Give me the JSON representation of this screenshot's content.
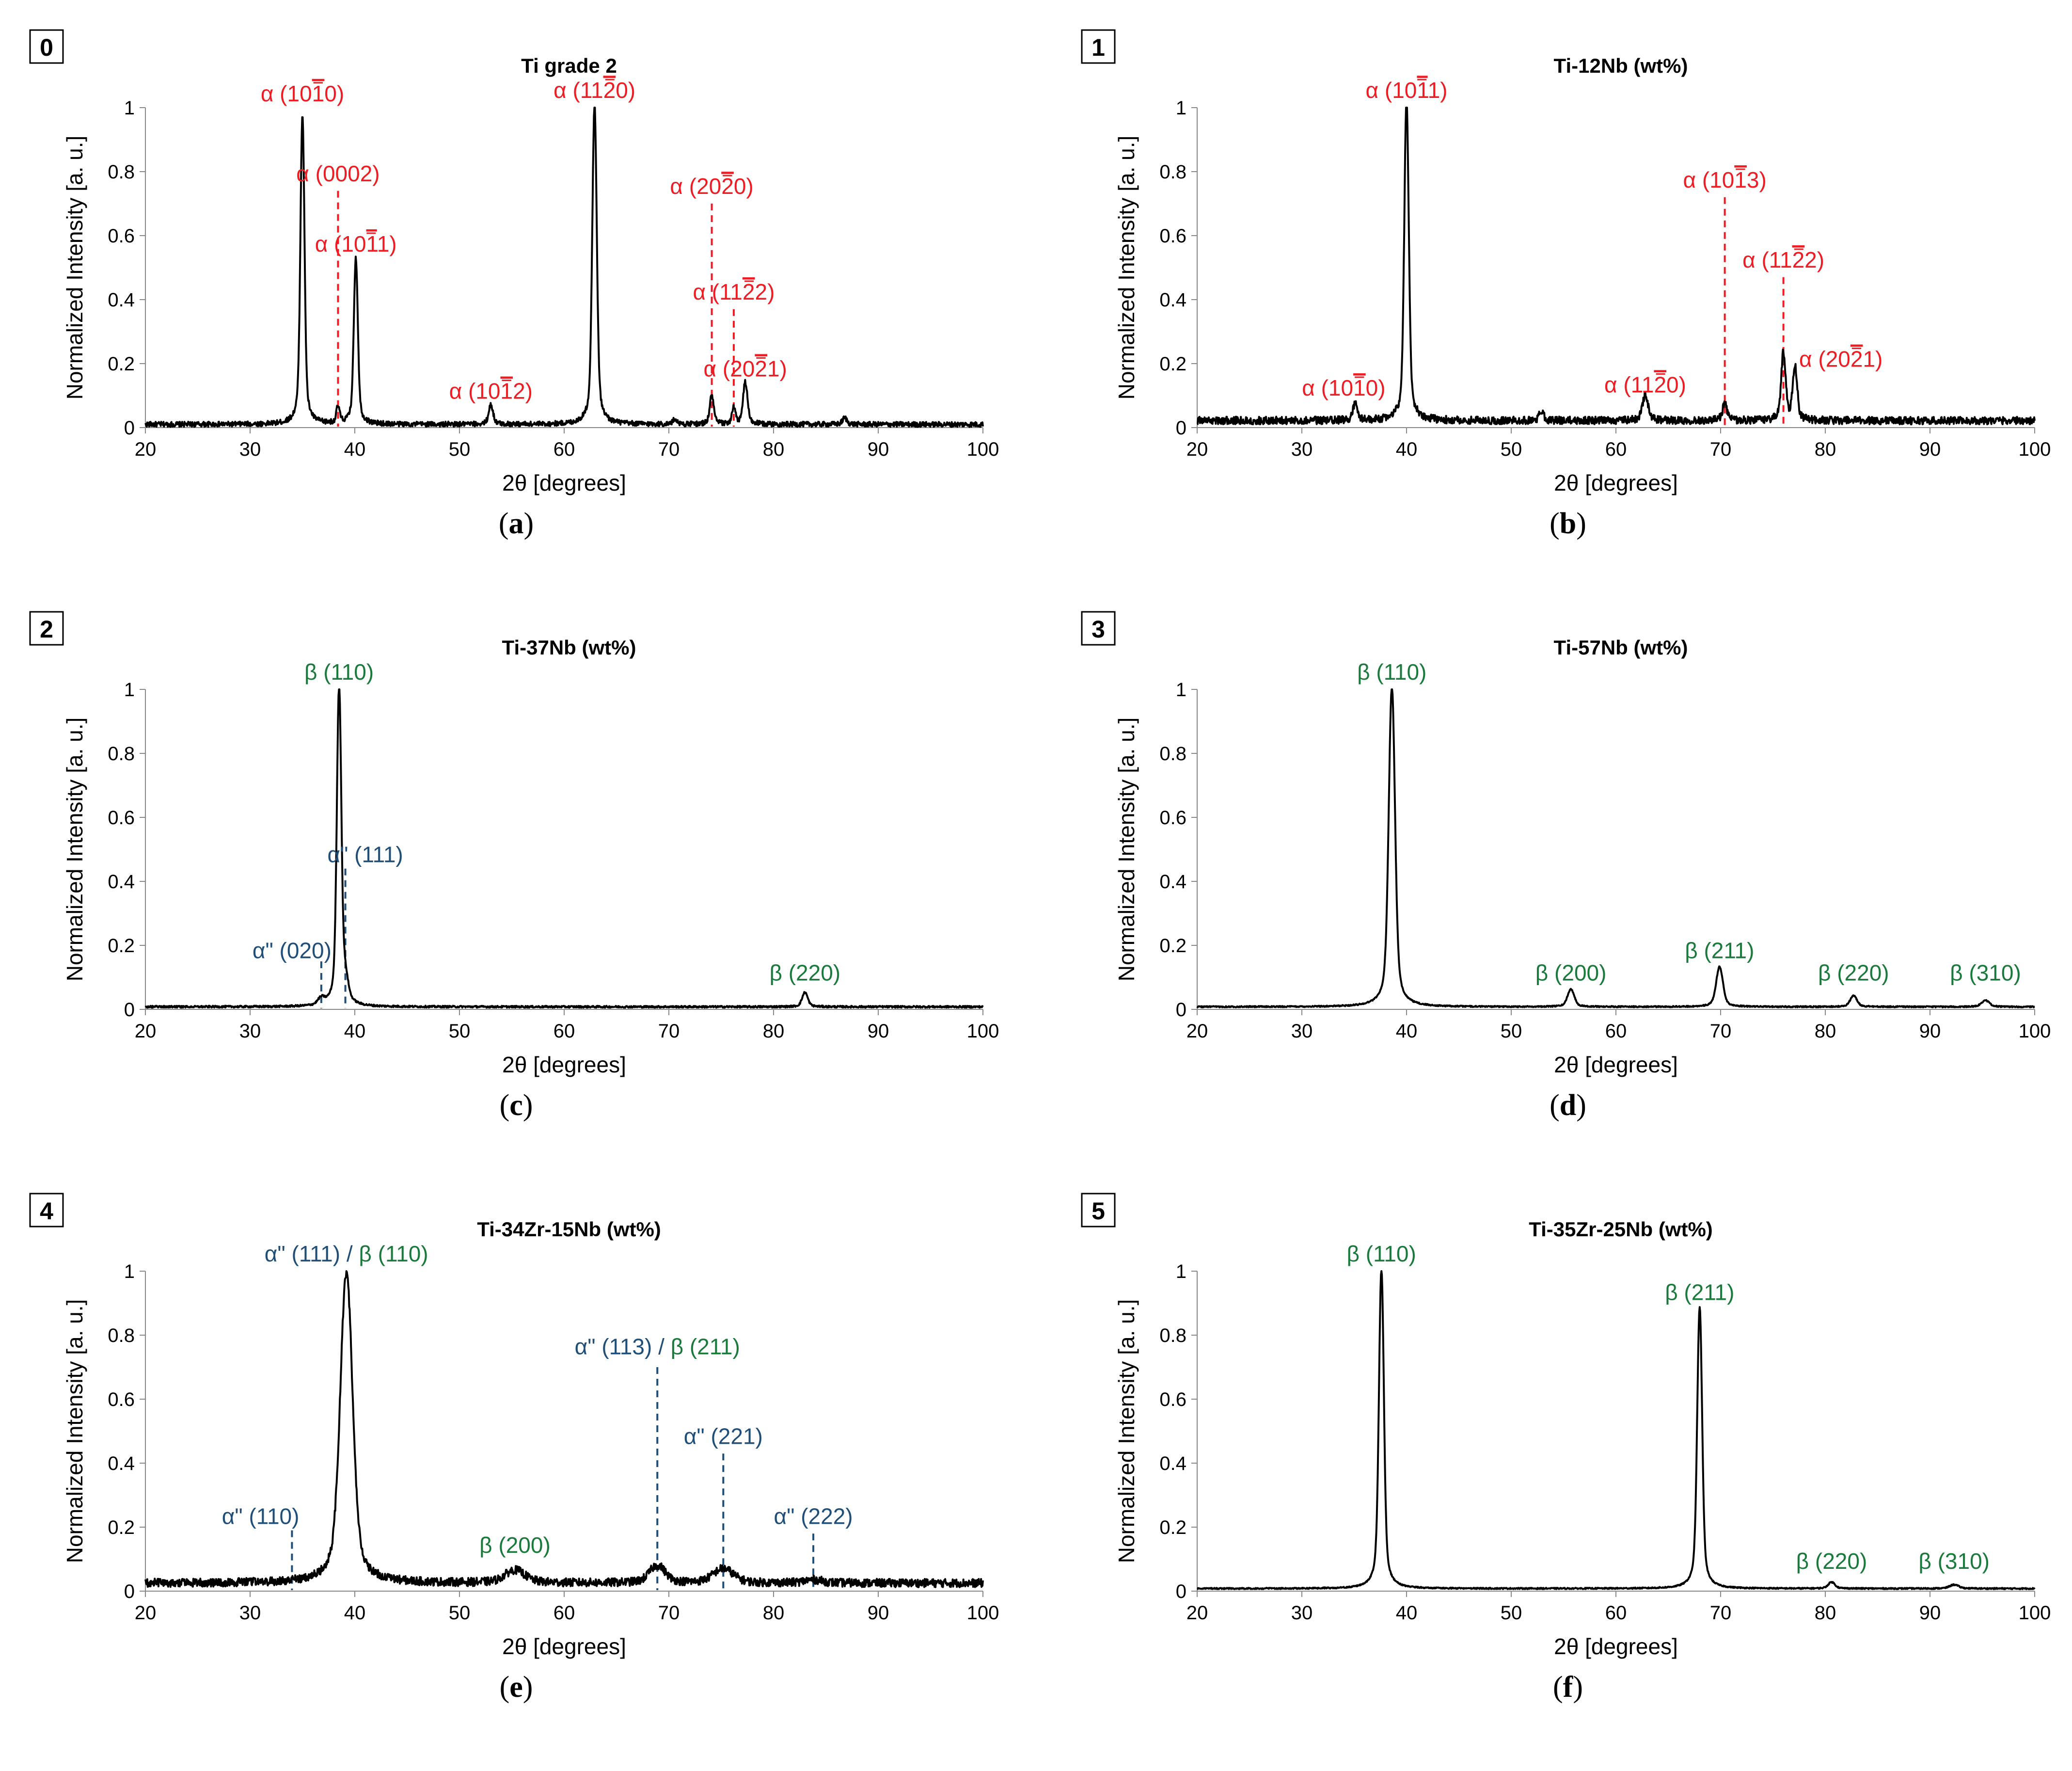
{
  "figure": {
    "axis_common": {
      "xlabel": "2θ [degrees]",
      "ylabel": "Normalized Intensity [a. u.]",
      "xlim": [
        20,
        100
      ],
      "ylim": [
        0,
        1
      ],
      "xticks": [
        "20",
        "30",
        "40",
        "50",
        "60",
        "70",
        "80",
        "90",
        "100"
      ],
      "yticks": [
        "0",
        "0.2",
        "0.4",
        "0.6",
        "0.8",
        "1"
      ]
    },
    "colors": {
      "alpha": "#ee1c23",
      "alpha_dd": "#1f4e79",
      "beta": "#1a7a3c",
      "trace": "#000000"
    }
  },
  "chart_data": [
    {
      "type": "line",
      "panel_number": "0",
      "caption_letter": "a",
      "title": "Ti grade 2",
      "noise": 0.008,
      "baseline": 0.01,
      "peaks": [
        {
          "x": 35.0,
          "y": 0.97,
          "w": 0.18
        },
        {
          "x": 38.4,
          "y": 0.05,
          "w": 0.15
        },
        {
          "x": 40.1,
          "y": 0.52,
          "w": 0.18
        },
        {
          "x": 53.0,
          "y": 0.06,
          "w": 0.2
        },
        {
          "x": 62.9,
          "y": 1.0,
          "w": 0.2
        },
        {
          "x": 70.6,
          "y": 0.015,
          "w": 0.2
        },
        {
          "x": 74.1,
          "y": 0.09,
          "w": 0.18
        },
        {
          "x": 76.2,
          "y": 0.05,
          "w": 0.15
        },
        {
          "x": 77.3,
          "y": 0.13,
          "w": 0.2
        },
        {
          "x": 86.8,
          "y": 0.02,
          "w": 0.2
        }
      ],
      "annotations": [
        {
          "text": "α (10",
          "bar": "1",
          "tail": "0)",
          "phase": "alpha",
          "x": 35.0,
          "ty": 1.02,
          "line": false
        },
        {
          "text": "α (0002)",
          "bar": "",
          "tail": "",
          "phase": "alpha",
          "x": 38.4,
          "ty": 0.77,
          "line": true,
          "ly": 0.74
        },
        {
          "text": "α (10",
          "bar": "1",
          "tail": "1)",
          "phase": "alpha",
          "x": 40.1,
          "ty": 0.55,
          "line": false
        },
        {
          "text": "α (10",
          "bar": "1",
          "tail": "2)",
          "phase": "alpha",
          "x": 53.0,
          "ty": 0.09,
          "line": false
        },
        {
          "text": "α (11",
          "bar": "2",
          "tail": "0)",
          "phase": "alpha",
          "x": 62.9,
          "ty": 1.03,
          "line": false
        },
        {
          "text": "α (20",
          "bar": "2",
          "tail": "0)",
          "phase": "alpha",
          "x": 74.1,
          "ty": 0.73,
          "line": true,
          "ly": 0.7,
          "ax": 74.1
        },
        {
          "text": "α (11",
          "bar": "2",
          "tail": "2)",
          "phase": "alpha",
          "x": 76.2,
          "ty": 0.4,
          "line": true,
          "ly": 0.37,
          "ax": 76.2
        },
        {
          "text": "α (20",
          "bar": "2",
          "tail": "1)",
          "phase": "alpha",
          "x": 77.3,
          "ty": 0.16,
          "line": false
        }
      ]
    },
    {
      "type": "line",
      "panel_number": "1",
      "caption_letter": "b",
      "title": "Ti-12Nb (wt%)",
      "noise": 0.012,
      "baseline": 0.022,
      "peaks": [
        {
          "x": 35.1,
          "y": 0.05,
          "w": 0.2
        },
        {
          "x": 40.0,
          "y": 1.0,
          "w": 0.2
        },
        {
          "x": 52.9,
          "y": 0.03,
          "w": 0.2
        },
        {
          "x": 62.8,
          "y": 0.08,
          "w": 0.25
        },
        {
          "x": 70.4,
          "y": 0.05,
          "w": 0.22
        },
        {
          "x": 76.0,
          "y": 0.21,
          "w": 0.2
        },
        {
          "x": 77.1,
          "y": 0.17,
          "w": 0.2
        }
      ],
      "annotations": [
        {
          "text": "α (10",
          "bar": "1",
          "tail": "1)",
          "phase": "alpha",
          "x": 40.0,
          "ty": 1.03,
          "line": false
        },
        {
          "text": "α (10",
          "bar": "1",
          "tail": "0)",
          "phase": "alpha",
          "x": 34.0,
          "ty": 0.1,
          "line": false
        },
        {
          "text": "α (11",
          "bar": "2",
          "tail": "0)",
          "phase": "alpha",
          "x": 62.8,
          "ty": 0.11,
          "line": false
        },
        {
          "text": "α (10",
          "bar": "1",
          "tail": "3)",
          "phase": "alpha",
          "x": 70.4,
          "ty": 0.75,
          "line": true,
          "ly": 0.72,
          "ax": 70.4
        },
        {
          "text": "α (11",
          "bar": "2",
          "tail": "2)",
          "phase": "alpha",
          "x": 76.0,
          "ty": 0.5,
          "line": true,
          "ly": 0.47,
          "ax": 76.0
        },
        {
          "text": "α (20",
          "bar": "2",
          "tail": "1)",
          "phase": "alpha",
          "x": 77.8,
          "ty": 0.19,
          "line": false,
          "anchor": "start",
          "tx": 77.5
        }
      ]
    },
    {
      "type": "line",
      "panel_number": "2",
      "caption_letter": "c",
      "title": "Ti-37Nb (wt%)",
      "noise": 0.003,
      "baseline": 0.008,
      "peaks": [
        {
          "x": 36.8,
          "y": 0.02,
          "w": 0.3
        },
        {
          "x": 38.5,
          "y": 1.0,
          "w": 0.2
        },
        {
          "x": 39.1,
          "y": 0.06,
          "w": 0.25
        },
        {
          "x": 83.0,
          "y": 0.045,
          "w": 0.25
        }
      ],
      "annotations": [
        {
          "text": "β (110)",
          "bar": "",
          "tail": "",
          "phase": "beta",
          "x": 38.5,
          "ty": 1.03,
          "line": false
        },
        {
          "text": "α\" (111)",
          "bar": "",
          "tail": "",
          "phase": "alpha_dd",
          "x": 41.0,
          "ty": 0.46,
          "line": true,
          "ly": 0.44,
          "ax": 39.1
        },
        {
          "text": "α\" (020)",
          "bar": "",
          "tail": "",
          "phase": "alpha_dd",
          "x": 34.0,
          "ty": 0.16,
          "line": true,
          "ly": 0.15,
          "ax": 36.8
        },
        {
          "text": "β (220)",
          "bar": "",
          "tail": "",
          "phase": "beta",
          "x": 83.0,
          "ty": 0.09,
          "line": false
        }
      ]
    },
    {
      "type": "line",
      "panel_number": "3",
      "caption_letter": "d",
      "title": "Ti-57Nb (wt%)",
      "noise": 0.002,
      "baseline": 0.008,
      "peaks": [
        {
          "x": 38.6,
          "y": 1.0,
          "w": 0.28
        },
        {
          "x": 55.7,
          "y": 0.055,
          "w": 0.3
        },
        {
          "x": 69.9,
          "y": 0.125,
          "w": 0.3
        },
        {
          "x": 82.7,
          "y": 0.035,
          "w": 0.3
        },
        {
          "x": 95.3,
          "y": 0.02,
          "w": 0.35
        }
      ],
      "annotations": [
        {
          "text": "β (110)",
          "bar": "",
          "tail": "",
          "phase": "beta",
          "x": 38.6,
          "ty": 1.03,
          "line": false
        },
        {
          "text": "β (200)",
          "bar": "",
          "tail": "",
          "phase": "beta",
          "x": 55.7,
          "ty": 0.09,
          "line": false
        },
        {
          "text": "β (211)",
          "bar": "",
          "tail": "",
          "phase": "beta",
          "x": 69.9,
          "ty": 0.16,
          "line": false
        },
        {
          "text": "β (220)",
          "bar": "",
          "tail": "",
          "phase": "beta",
          "x": 82.7,
          "ty": 0.09,
          "line": false
        },
        {
          "text": "β (310)",
          "bar": "",
          "tail": "",
          "phase": "beta",
          "x": 95.3,
          "ty": 0.09,
          "line": false
        }
      ]
    },
    {
      "type": "line",
      "panel_number": "4",
      "caption_letter": "e",
      "title": "Ti-34Zr-15Nb (wt%)",
      "noise": 0.013,
      "baseline": 0.025,
      "peaks": [
        {
          "x": 39.2,
          "y": 0.97,
          "w": 0.55
        },
        {
          "x": 55.3,
          "y": 0.04,
          "w": 0.9
        },
        {
          "x": 68.9,
          "y": 0.055,
          "w": 0.7
        },
        {
          "x": 75.2,
          "y": 0.045,
          "w": 0.9
        },
        {
          "x": 83.8,
          "y": 0.01,
          "w": 0.8
        }
      ],
      "annotations": [
        {
          "text": "α\" (111) / ",
          "tail_beta": "β (110)",
          "bar": "",
          "tail": "",
          "phase": "alpha_dd",
          "x": 39.2,
          "ty": 1.03,
          "line": false,
          "mixed": true
        },
        {
          "text": "α\" (113) / ",
          "tail_beta": "β (211)",
          "bar": "",
          "tail": "",
          "phase": "alpha_dd",
          "x": 68.9,
          "ty": 0.74,
          "line": true,
          "ly": 0.7,
          "ax": 68.9,
          "mixed": true
        },
        {
          "text": "α\" (221)",
          "bar": "",
          "tail": "",
          "phase": "alpha_dd",
          "x": 75.2,
          "ty": 0.46,
          "line": true,
          "ly": 0.43,
          "ax": 75.2
        },
        {
          "text": "α\" (110)",
          "bar": "",
          "tail": "",
          "phase": "alpha_dd",
          "x": 31.0,
          "ty": 0.21,
          "line": true,
          "ly": 0.19,
          "ax": 34.0
        },
        {
          "text": "β (200)",
          "bar": "",
          "tail": "",
          "phase": "beta",
          "x": 55.3,
          "ty": 0.12,
          "line": false
        },
        {
          "text": "α\" (222)",
          "bar": "",
          "tail": "",
          "phase": "alpha_dd",
          "x": 83.8,
          "ty": 0.21,
          "line": true,
          "ly": 0.18,
          "ax": 83.8
        }
      ]
    },
    {
      "type": "line",
      "panel_number": "5",
      "caption_letter": "f",
      "title": "Ti-35Zr-25Nb (wt%)",
      "noise": 0.002,
      "baseline": 0.008,
      "peaks": [
        {
          "x": 37.6,
          "y": 1.0,
          "w": 0.22
        },
        {
          "x": 68.0,
          "y": 0.88,
          "w": 0.22
        },
        {
          "x": 80.6,
          "y": 0.02,
          "w": 0.3
        },
        {
          "x": 92.3,
          "y": 0.012,
          "w": 0.4
        }
      ],
      "annotations": [
        {
          "text": "β (110)",
          "bar": "",
          "tail": "",
          "phase": "beta",
          "x": 37.6,
          "ty": 1.03,
          "line": false
        },
        {
          "text": "β (211)",
          "bar": "",
          "tail": "",
          "phase": "beta",
          "x": 68.0,
          "ty": 0.91,
          "line": false
        },
        {
          "text": "β (220)",
          "bar": "",
          "tail": "",
          "phase": "beta",
          "x": 80.6,
          "ty": 0.07,
          "line": false
        },
        {
          "text": "β (310)",
          "bar": "",
          "tail": "",
          "phase": "beta",
          "x": 92.3,
          "ty": 0.07,
          "line": false
        }
      ]
    }
  ]
}
